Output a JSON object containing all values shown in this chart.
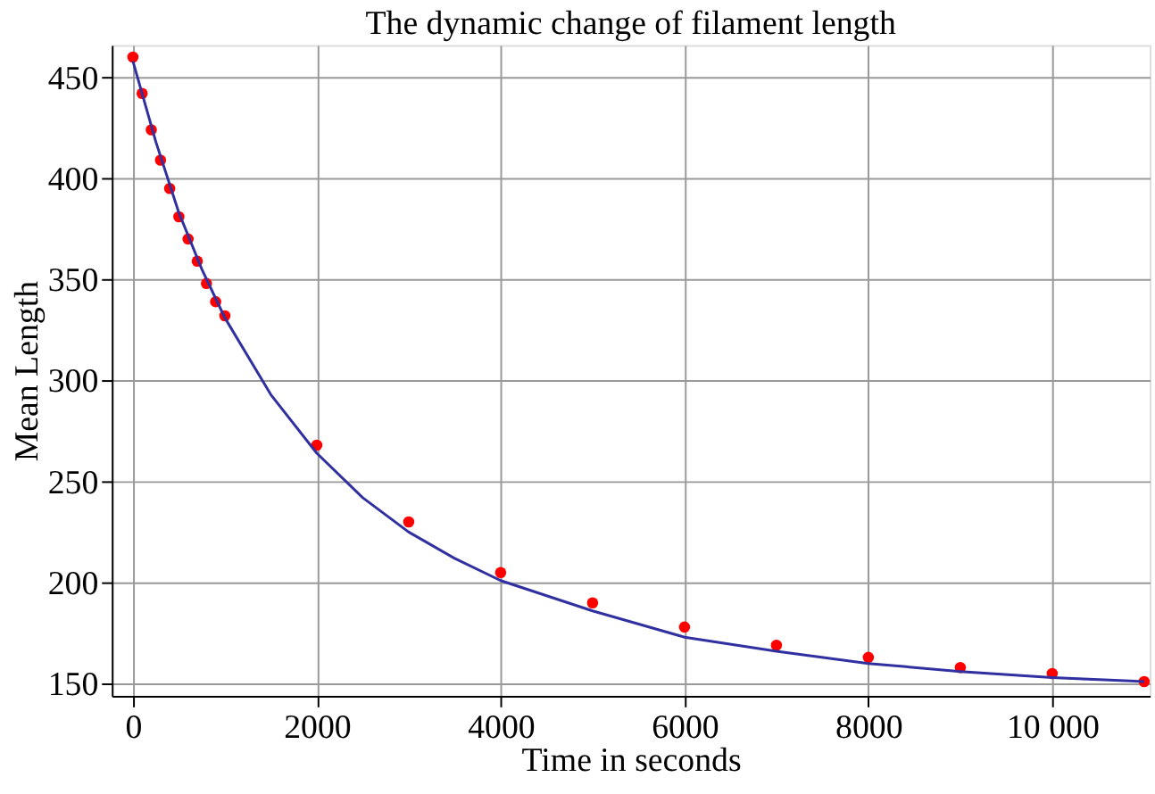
{
  "chart_data": {
    "type": "scatter",
    "title": "The dynamic change of filament length",
    "xlabel": "Time in seconds",
    "ylabel": "Mean Length",
    "xlim": [
      -230,
      11060
    ],
    "ylim": [
      144,
      466
    ],
    "xticks": [
      0,
      2000,
      4000,
      6000,
      8000,
      {
        "value": 10000,
        "label": "10 000"
      }
    ],
    "yticks": [
      150,
      200,
      250,
      300,
      350,
      400,
      450
    ],
    "grid": true,
    "marker": "circle",
    "series": [
      {
        "color": "#ff0000",
        "x": [
          0,
          100,
          200,
          300,
          400,
          500,
          600,
          700,
          800,
          900,
          1000,
          2000,
          3000,
          4000,
          5000,
          6000,
          7000,
          8000,
          9000,
          10000,
          11000
        ],
        "values": [
          460,
          442,
          424,
          409,
          395,
          381,
          370,
          359,
          348,
          339,
          332,
          268,
          230,
          205,
          190,
          178,
          169,
          163,
          158,
          155,
          151
        ]
      },
      {
        "type": "line",
        "color": "#3030a0",
        "marker": "none",
        "x": [
          0,
          250,
          500,
          750,
          1000,
          1500,
          2000,
          2500,
          3000,
          3500,
          4000,
          5000,
          6000,
          7000,
          8000,
          9000,
          10000,
          11000
        ],
        "values": [
          458,
          418,
          383,
          355,
          331,
          293,
          264,
          242,
          225,
          212,
          201,
          186,
          173,
          166,
          160,
          156,
          153,
          151
        ]
      }
    ]
  }
}
